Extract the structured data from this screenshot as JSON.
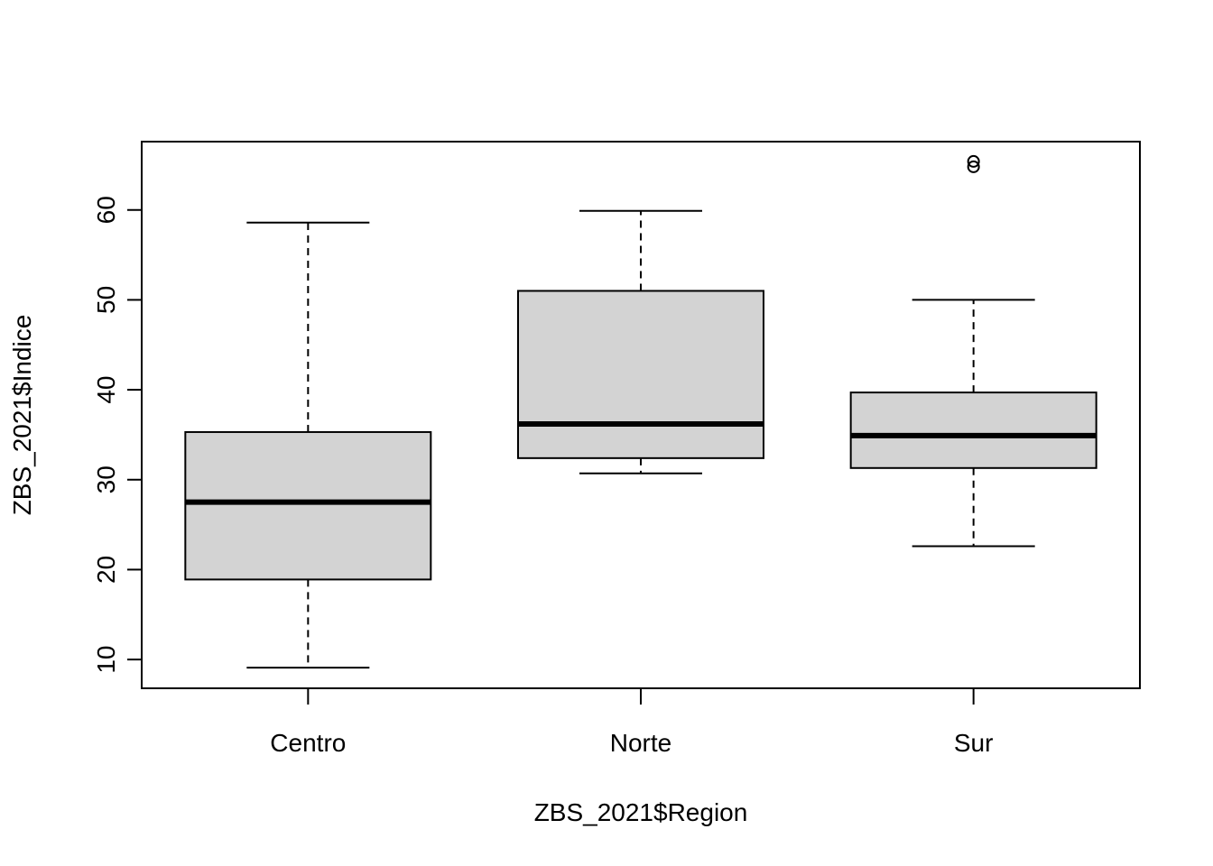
{
  "chart_data": {
    "type": "boxplot",
    "title": "",
    "xlabel": "ZBS_2021$Region",
    "ylabel": "ZBS_2021$Indice",
    "ylim": [
      6.8,
      67.6
    ],
    "yticks": [
      10,
      20,
      30,
      40,
      50,
      60
    ],
    "categories": [
      "Centro",
      "Norte",
      "Sur"
    ],
    "boxes": [
      {
        "name": "Centro",
        "whisker_low": 9.1,
        "q1": 18.9,
        "median": 27.5,
        "q3": 35.3,
        "whisker_high": 58.6,
        "outliers": []
      },
      {
        "name": "Norte",
        "whisker_low": 30.7,
        "q1": 32.4,
        "median": 36.2,
        "q3": 51.0,
        "whisker_high": 59.9,
        "outliers": []
      },
      {
        "name": "Sur",
        "whisker_low": 22.6,
        "q1": 31.3,
        "median": 34.9,
        "q3": 39.7,
        "whisker_high": 50.0,
        "outliers": [
          64.8,
          65.4
        ]
      }
    ],
    "colors": {
      "box_fill": "#d3d3d3",
      "stroke": "#000000"
    },
    "grid": false,
    "legend": "none"
  }
}
